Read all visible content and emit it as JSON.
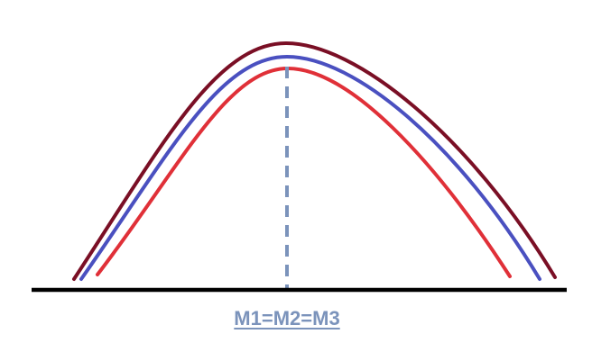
{
  "diagram": {
    "label": "M1=M2=M3",
    "colors": {
      "outer_curve": "#7a0f25",
      "middle_curve": "#4a50c0",
      "inner_curve": "#e03038",
      "baseline": "#000000",
      "center_line": "#7b93bb",
      "label": "#7b93bb"
    }
  }
}
